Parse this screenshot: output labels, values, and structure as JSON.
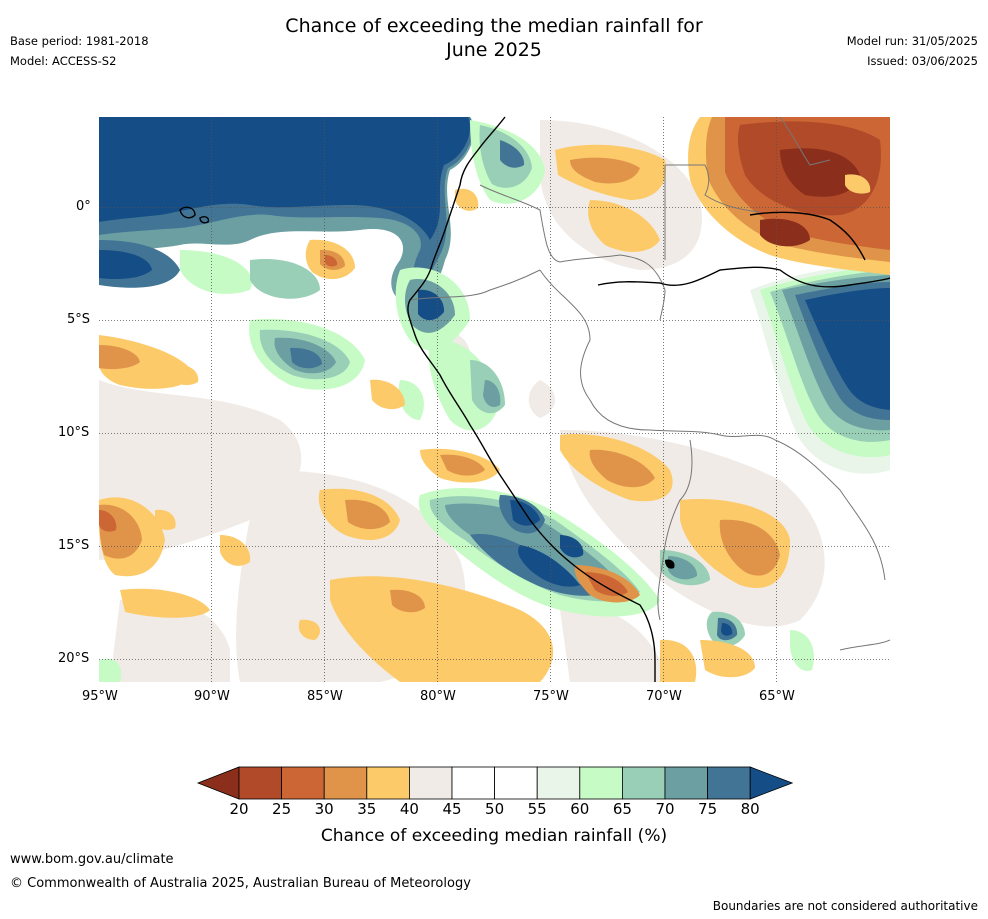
{
  "header": {
    "title_line1": "Chance of exceeding the median rainfall for",
    "title_line2": "June 2025",
    "base_period": "Base period: 1981-2018",
    "model": "Model: ACCESS-S2",
    "model_run": "Model run: 31/05/2025",
    "issued": "Issued: 03/06/2025"
  },
  "map": {
    "lat_labels": [
      "0°",
      "5°S",
      "10°S",
      "15°S",
      "20°S"
    ],
    "lon_labels": [
      "95°W",
      "90°W",
      "85°W",
      "80°W",
      "75°W",
      "70°W",
      "65°W"
    ],
    "extent": {
      "lon_min": -95,
      "lon_max": -60,
      "lat_min": -21,
      "lat_max": 4
    }
  },
  "colorbar": {
    "ticks": [
      "20",
      "25",
      "30",
      "35",
      "40",
      "45",
      "50",
      "55",
      "60",
      "65",
      "70",
      "75",
      "80"
    ],
    "colors": [
      "#8b2f1c",
      "#b04a29",
      "#cc6634",
      "#e0944a",
      "#fdca6a",
      "#f0ebe6",
      "#ffffff",
      "#ffffff",
      "#e9f5e9",
      "#c6fbc6",
      "#99cfb6",
      "#6b9fa2",
      "#417495",
      "#154d86"
    ],
    "label": "Chance of exceeding median rainfall (%)"
  },
  "footer": {
    "url": "www.bom.gov.au/climate",
    "copyright": "© Commonwealth of Australia 2025, Australian Bureau of Meteorology",
    "disclaimer": "Boundaries are not considered authoritative"
  }
}
